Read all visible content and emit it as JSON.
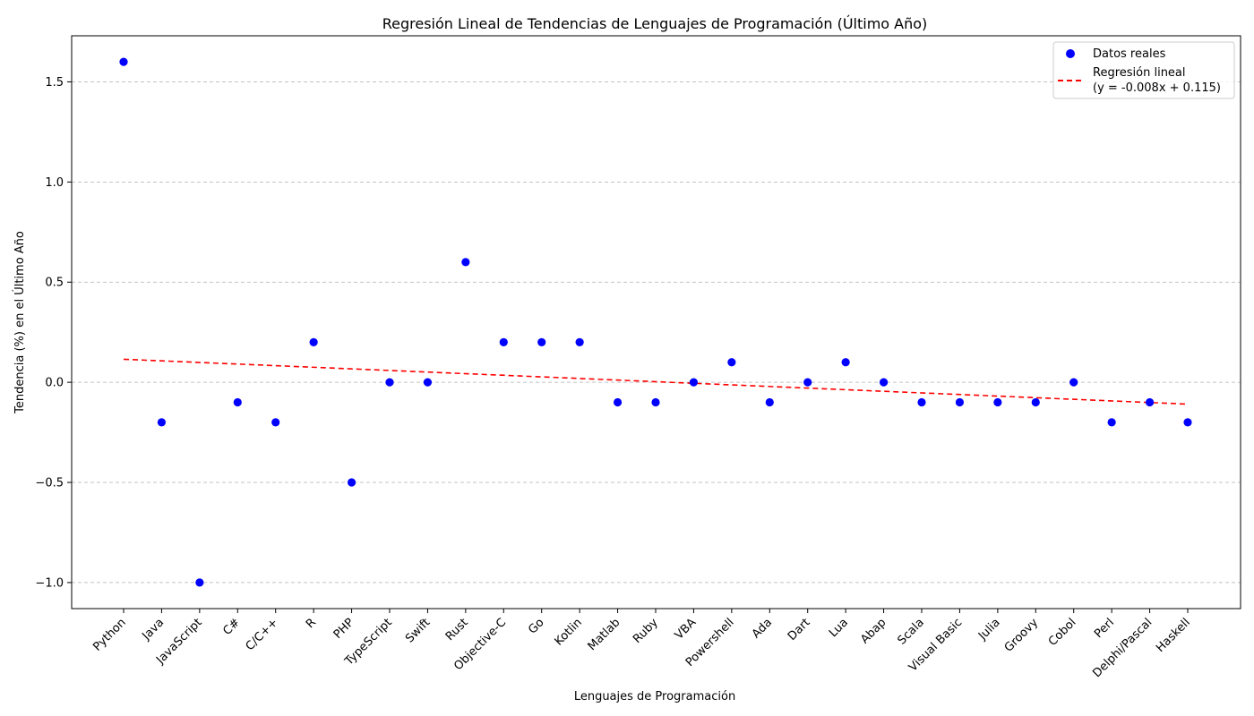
{
  "chart_data": {
    "type": "scatter",
    "title": "Regresión Lineal de Tendencias de Lenguajes de Programación (Último Año)",
    "xlabel": "Lenguajes de Programación",
    "ylabel": "Tendencia (%) en el Último Año",
    "categories": [
      "Python",
      "Java",
      "JavaScript",
      "C#",
      "C/C++",
      "R",
      "PHP",
      "TypeScript",
      "Swift",
      "Rust",
      "Objective-C",
      "Go",
      "Kotlin",
      "Matlab",
      "Ruby",
      "VBA",
      "Powershell",
      "Ada",
      "Dart",
      "Lua",
      "Abap",
      "Scala",
      "Visual Basic",
      "Julia",
      "Groovy",
      "Cobol",
      "Perl",
      "Delphi/Pascal",
      "Haskell"
    ],
    "series": [
      {
        "name": "Datos reales",
        "kind": "scatter",
        "color": "#0000ff",
        "values": [
          1.6,
          -0.2,
          -1.0,
          -0.1,
          -0.2,
          0.2,
          -0.5,
          0.0,
          0.0,
          0.6,
          0.2,
          0.2,
          0.2,
          -0.1,
          -0.1,
          0.0,
          0.1,
          -0.1,
          0.0,
          0.1,
          0.0,
          -0.1,
          -0.1,
          -0.1,
          -0.1,
          0.0,
          -0.2,
          -0.1,
          -0.2
        ]
      },
      {
        "name": "Regresión lineal\n(y = -0.008x + 0.115)",
        "kind": "line",
        "style": "dashed",
        "color": "#ff0000",
        "slope": -0.008,
        "intercept": 0.115
      }
    ],
    "yticks": [
      -1.0,
      -0.5,
      0.0,
      0.5,
      1.0,
      1.5
    ],
    "ytick_labels": [
      "−1.0",
      "−0.5",
      "0.0",
      "0.5",
      "1.0",
      "1.5"
    ],
    "ylim": [
      -1.13,
      1.73
    ],
    "grid": "y-dashed",
    "legend": {
      "placement": "top-right",
      "entries": [
        "Datos reales",
        "Regresión lineal",
        "(y = -0.008x + 0.115)"
      ]
    }
  }
}
